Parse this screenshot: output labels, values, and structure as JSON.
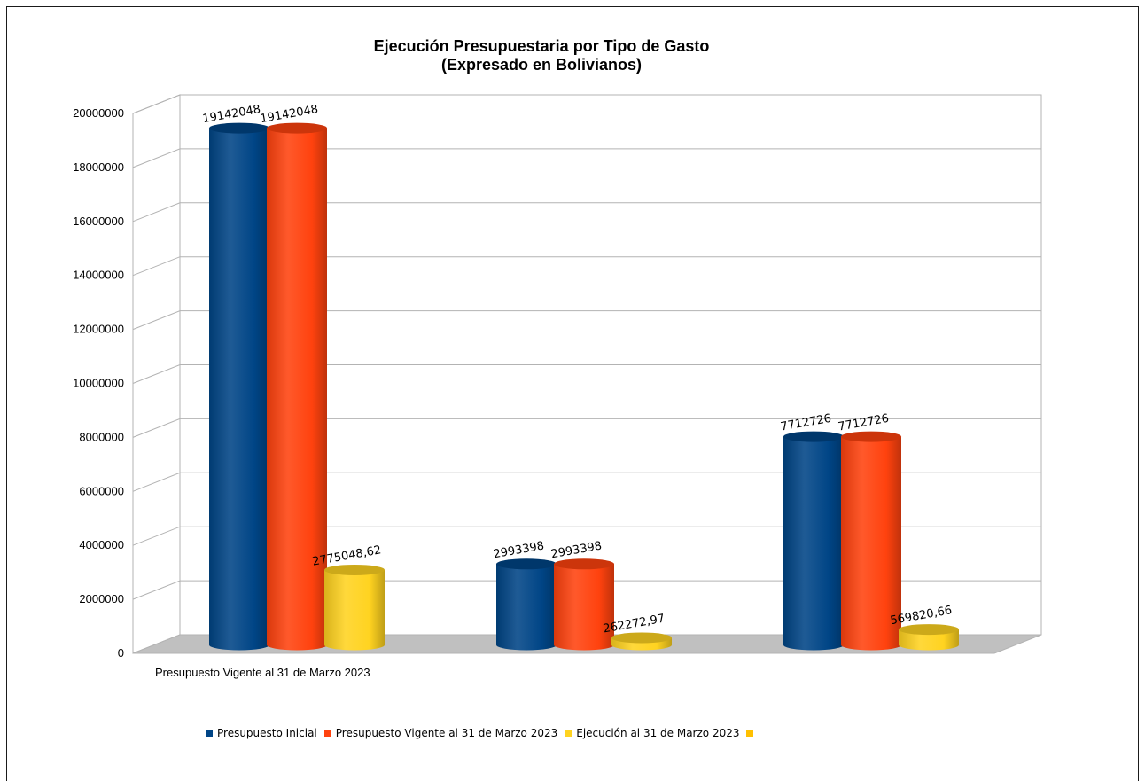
{
  "chart_data": {
    "type": "bar",
    "title": "Ejecución Presupuestaria por Tipo de Gasto",
    "subtitle": "(Expresado en Bolivianos)",
    "categories": [
      "Presupuesto Vigente al 31 de Marzo 2023",
      "",
      ""
    ],
    "series": [
      {
        "name": "Presupuesto Inicial",
        "color": "#004586",
        "values": [
          19142048,
          2993398,
          7712726
        ],
        "labels": [
          "19142048",
          "2993398",
          "7712726"
        ]
      },
      {
        "name": "Presupuesto Vigente al 31 de Marzo 2023",
        "color": "#ff420e",
        "values": [
          19142048,
          2993398,
          7712726
        ],
        "labels": [
          "19142048",
          "2993398",
          "7712726"
        ]
      },
      {
        "name": "Ejecución al 31 de Marzo 2023",
        "color": "#ffd320",
        "values": [
          2775048.62,
          262272.97,
          569820.66
        ],
        "labels": [
          "2775048,62",
          "262272,97",
          "569820,66"
        ]
      }
    ],
    "extra_legend_swatch_color": "#ffc000",
    "ylim": [
      0,
      20000000
    ],
    "yticks": [
      "0",
      "2000000",
      "4000000",
      "6000000",
      "8000000",
      "10000000",
      "12000000",
      "14000000",
      "16000000",
      "18000000",
      "20000000"
    ],
    "grid": true,
    "legend_position": "bottom",
    "bar_shape": "3d-cylinder"
  }
}
